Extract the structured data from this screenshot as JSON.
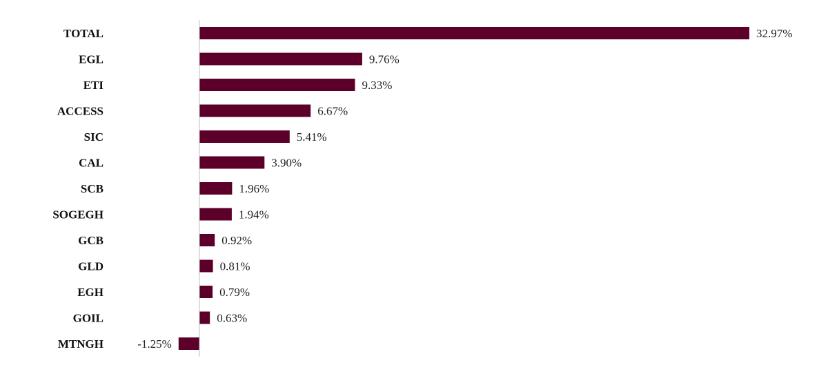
{
  "chart_data": {
    "type": "bar",
    "orientation": "horizontal",
    "categories": [
      "TOTAL",
      "EGL",
      "ETI",
      "ACCESS",
      "SIC",
      "CAL",
      "SCB",
      "SOGEGH",
      "GCB",
      "GLD",
      "EGH",
      "GOIL",
      "MTNGH"
    ],
    "values": [
      32.97,
      9.76,
      9.33,
      6.67,
      5.41,
      3.9,
      1.96,
      1.94,
      0.92,
      0.81,
      0.79,
      0.63,
      -1.25
    ],
    "value_labels": [
      "32.97%",
      "9.76%",
      "9.33%",
      "6.67%",
      "5.41%",
      "3.90%",
      "1.96%",
      "1.94%",
      "0.92%",
      "0.81%",
      "0.79%",
      "0.63%",
      "-1.25%"
    ],
    "title": "",
    "xlabel": "",
    "ylabel": "",
    "value_unit": "%",
    "grid": false,
    "legend": "none",
    "bar_color": "#5c0029"
  }
}
